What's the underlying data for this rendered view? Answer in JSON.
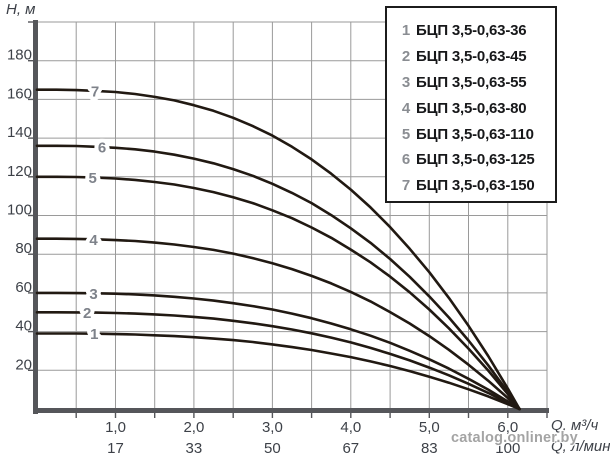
{
  "chart_data": {
    "type": "line",
    "title": "",
    "ylabel": "H, м",
    "xlabel_row1": "Q, м³/ч",
    "xlabel_row2": "Q, л/мин",
    "xlim": [
      0,
      6.5
    ],
    "ylim": [
      0,
      200
    ],
    "x_grid_step": 0.5,
    "y_grid_step": 20,
    "grid": true,
    "legend_position": "top-right",
    "y_ticks": [
      20,
      40,
      60,
      80,
      100,
      120,
      140,
      160,
      180
    ],
    "x_ticks": {
      "values": [
        1,
        2,
        3,
        4,
        5,
        6
      ],
      "labels_m3h": [
        "1,0",
        "2,0",
        "3,0",
        "4,0",
        "5,0",
        "6,0"
      ],
      "labels_lmin": [
        "17",
        "33",
        "50",
        "67",
        "83",
        "100"
      ]
    },
    "max_flow_m3h": 6.15,
    "q_samples": [
      0,
      0.25,
      0.5,
      0.75,
      1,
      1.25,
      1.5,
      1.75,
      2,
      2.25,
      2.5,
      2.75,
      3,
      3.25,
      3.5,
      3.75,
      4,
      4.25,
      4.5,
      4.75,
      5,
      5.25,
      5.5,
      5.75,
      6,
      6.15
    ],
    "series": [
      {
        "num": "1",
        "name": "БЦП 3,5-0,63-36",
        "shutoff_head_m": 39,
        "label_q": 0.73,
        "H": [
          39,
          39,
          39,
          38.9,
          38.7,
          38.5,
          38.1,
          37.7,
          37.1,
          36.4,
          35.6,
          34.6,
          33.4,
          32,
          30.5,
          28.7,
          26.8,
          24.6,
          22.2,
          19.6,
          16.7,
          13.6,
          10.2,
          6.5,
          2.5,
          0
        ]
      },
      {
        "num": "2",
        "name": "БЦП 3,5-0,63-45",
        "shutoff_head_m": 50,
        "label_q": 0.64,
        "H": [
          50,
          50,
          49.9,
          49.8,
          49.6,
          49.3,
          48.9,
          48.3,
          47.6,
          46.7,
          45.6,
          44.3,
          42.8,
          41.1,
          39.1,
          36.9,
          34.4,
          31.6,
          28.5,
          25.1,
          21.4,
          17.4,
          13,
          8.3,
          3.2,
          0
        ]
      },
      {
        "num": "3",
        "name": "БЦП 3,5-0,63-55",
        "shutoff_head_m": 60,
        "label_q": 0.72,
        "H": [
          60,
          60,
          59.9,
          59.8,
          59.6,
          59.2,
          58.7,
          58,
          57.1,
          56,
          54.7,
          53.2,
          51.4,
          49.3,
          46.9,
          44.2,
          41.2,
          37.9,
          34.2,
          30.1,
          25.7,
          20.9,
          15.6,
          10,
          3.9,
          0
        ]
      },
      {
        "num": "4",
        "name": "БЦП 3,5-0,63-80",
        "shutoff_head_m": 88,
        "label_q": 0.72,
        "H": [
          88,
          88,
          87.9,
          87.7,
          87.3,
          86.8,
          86,
          85,
          83.7,
          82.2,
          80.3,
          78,
          75.3,
          72.3,
          68.8,
          64.9,
          60.5,
          55.6,
          50.1,
          44.2,
          37.7,
          30.6,
          22.9,
          14.6,
          5.7,
          0
        ]
      },
      {
        "num": "5",
        "name": "БЦП 3,5-0,63-110",
        "shutoff_head_m": 120,
        "label_q": 0.71,
        "H": [
          120,
          120,
          119.9,
          119.6,
          119.1,
          118.4,
          117.3,
          116,
          114.2,
          112.1,
          109.4,
          106.4,
          102.7,
          98.6,
          93.8,
          88.5,
          82.4,
          75.8,
          68.4,
          60.3,
          51.4,
          41.7,
          31.2,
          19.9,
          7.7,
          0
        ]
      },
      {
        "num": "6",
        "name": "БЦП 3,5-0,63-125",
        "shutoff_head_m": 136,
        "label_q": 0.83,
        "H": [
          136,
          136,
          135.9,
          135.5,
          135,
          134.2,
          133,
          131.4,
          129.4,
          127,
          124,
          120.5,
          116.4,
          111.7,
          106.4,
          100.2,
          93.4,
          85.9,
          77.5,
          68.3,
          58.2,
          47.3,
          35.4,
          22.6,
          8.8,
          0
        ]
      },
      {
        "num": "7",
        "name": "БЦП 3,5-0,63-150",
        "shutoff_head_m": 165,
        "label_q": 0.74,
        "H": [
          165,
          165,
          164.8,
          164.4,
          163.8,
          162.8,
          161.3,
          159.5,
          157,
          154.1,
          150.5,
          146.2,
          141.3,
          135.5,
          129,
          121.6,
          113.4,
          104.2,
          94,
          82.8,
          70.7,
          57.4,
          43,
          27.4,
          10.6,
          0
        ]
      }
    ]
  },
  "watermark": {
    "text": "catalog.onliner.by"
  },
  "colors": {
    "background": "#ffffff",
    "grid": "#9a9a9a",
    "axis": "#55565a",
    "text": "#3d4148",
    "curve": "#211912",
    "curve_label": "#7e828a",
    "legend_border": "#1c1c1c",
    "legend_number": "#8a8d92",
    "legend_text": "#17181a",
    "watermark": "#9e9e9e"
  }
}
